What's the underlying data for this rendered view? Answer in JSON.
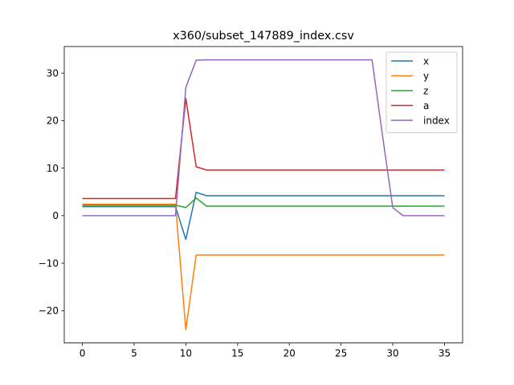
{
  "chart_data": {
    "type": "line",
    "title": "x360/subset_147889_index.csv",
    "xlabel": "",
    "ylabel": "",
    "xlim": [
      -1.75,
      36.75
    ],
    "ylim": [
      -26.8,
      35.6
    ],
    "xticks": [
      0,
      5,
      10,
      15,
      20,
      25,
      30,
      35
    ],
    "yticks": [
      -20,
      -10,
      0,
      10,
      20,
      30
    ],
    "grid": false,
    "legend_position": "top-right",
    "series": [
      {
        "name": "x",
        "color": "#1f77b4",
        "x": [
          0,
          1,
          2,
          3,
          4,
          5,
          6,
          7,
          8,
          9,
          10,
          11,
          12,
          13,
          14,
          15,
          16,
          17,
          18,
          19,
          20,
          21,
          22,
          23,
          24,
          25,
          26,
          27,
          28,
          29,
          30,
          31,
          32,
          33,
          34,
          35
        ],
        "y": [
          1.9,
          1.9,
          1.9,
          1.9,
          1.9,
          1.9,
          1.9,
          1.9,
          1.9,
          1.9,
          -5.0,
          4.9,
          4.2,
          4.2,
          4.2,
          4.2,
          4.2,
          4.2,
          4.2,
          4.2,
          4.2,
          4.2,
          4.2,
          4.2,
          4.2,
          4.2,
          4.2,
          4.2,
          4.2,
          4.2,
          4.2,
          4.2,
          4.2,
          4.2,
          4.2,
          4.2
        ]
      },
      {
        "name": "y",
        "color": "#ff7f0e",
        "x": [
          0,
          1,
          2,
          3,
          4,
          5,
          6,
          7,
          8,
          9,
          10,
          11,
          12,
          13,
          14,
          15,
          16,
          17,
          18,
          19,
          20,
          21,
          22,
          23,
          24,
          25,
          26,
          27,
          28,
          29,
          30,
          31,
          32,
          33,
          34,
          35
        ],
        "y": [
          2.4,
          2.4,
          2.4,
          2.4,
          2.4,
          2.4,
          2.4,
          2.4,
          2.4,
          2.4,
          -24.0,
          -8.3,
          -8.3,
          -8.3,
          -8.3,
          -8.3,
          -8.3,
          -8.3,
          -8.3,
          -8.3,
          -8.3,
          -8.3,
          -8.3,
          -8.3,
          -8.3,
          -8.3,
          -8.3,
          -8.3,
          -8.3,
          -8.3,
          -8.3,
          -8.3,
          -8.3,
          -8.3,
          -8.3,
          -8.3
        ]
      },
      {
        "name": "z",
        "color": "#2ca02c",
        "x": [
          0,
          1,
          2,
          3,
          4,
          5,
          6,
          7,
          8,
          9,
          10,
          11,
          12,
          13,
          14,
          15,
          16,
          17,
          18,
          19,
          20,
          21,
          22,
          23,
          24,
          25,
          26,
          27,
          28,
          29,
          30,
          31,
          32,
          33,
          34,
          35
        ],
        "y": [
          2.2,
          2.2,
          2.2,
          2.2,
          2.2,
          2.2,
          2.2,
          2.2,
          2.2,
          2.2,
          1.7,
          3.7,
          2.0,
          2.0,
          2.0,
          2.0,
          2.0,
          2.0,
          2.0,
          2.0,
          2.0,
          2.0,
          2.0,
          2.0,
          2.0,
          2.0,
          2.0,
          2.0,
          2.0,
          2.0,
          2.0,
          2.0,
          2.0,
          2.0,
          2.0,
          2.0
        ]
      },
      {
        "name": "a",
        "color": "#d62728",
        "x": [
          0,
          1,
          2,
          3,
          4,
          5,
          6,
          7,
          8,
          9,
          10,
          11,
          12,
          13,
          14,
          15,
          16,
          17,
          18,
          19,
          20,
          21,
          22,
          23,
          24,
          25,
          26,
          27,
          28,
          29,
          30,
          31,
          32,
          33,
          34,
          35
        ],
        "y": [
          3.6,
          3.6,
          3.6,
          3.6,
          3.6,
          3.6,
          3.6,
          3.6,
          3.6,
          3.6,
          24.7,
          10.3,
          9.6,
          9.6,
          9.6,
          9.6,
          9.6,
          9.6,
          9.6,
          9.6,
          9.6,
          9.6,
          9.6,
          9.6,
          9.6,
          9.6,
          9.6,
          9.6,
          9.6,
          9.6,
          9.6,
          9.6,
          9.6,
          9.6,
          9.6,
          9.6
        ]
      },
      {
        "name": "index",
        "color": "#9467bd",
        "x": [
          0,
          1,
          2,
          3,
          4,
          5,
          6,
          7,
          8,
          9,
          10,
          11,
          12,
          13,
          14,
          15,
          16,
          17,
          18,
          19,
          20,
          21,
          22,
          23,
          24,
          25,
          26,
          27,
          28,
          29,
          30,
          31,
          32,
          33,
          34,
          35
        ],
        "y": [
          0,
          0,
          0,
          0,
          0,
          0,
          0,
          0,
          0,
          0,
          27.0,
          32.7,
          32.8,
          32.8,
          32.8,
          32.8,
          32.8,
          32.8,
          32.8,
          32.8,
          32.8,
          32.8,
          32.8,
          32.8,
          32.8,
          32.8,
          32.8,
          32.8,
          32.8,
          17.0,
          1.7,
          0,
          0,
          0,
          0,
          0
        ]
      }
    ]
  }
}
